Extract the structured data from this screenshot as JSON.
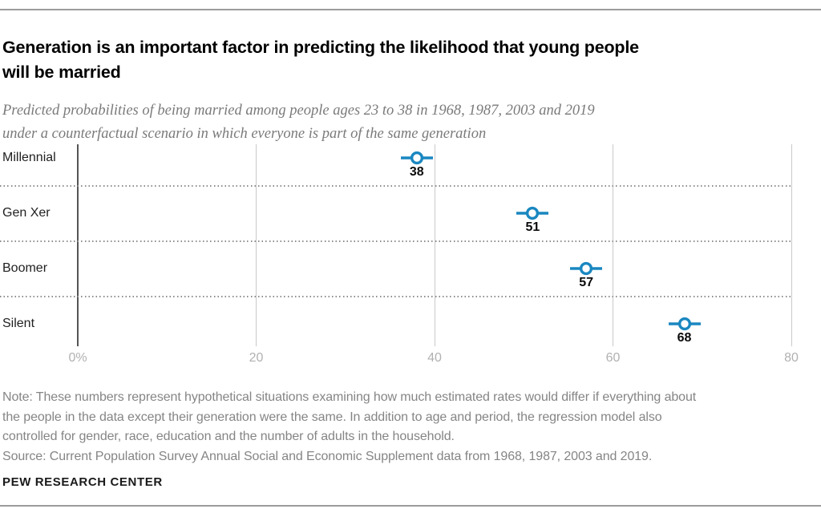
{
  "header": {
    "title_lines": [
      "Generation is an important factor in predicting the likelihood that young people",
      "will be married"
    ],
    "subtitle_lines": [
      "Predicted probabilities of being married among people ages 23 to 38 in 1968, 1987, 2003 and 2019",
      "under a counterfactual scenario in which everyone is part of the same generation"
    ]
  },
  "chart_data": {
    "type": "scatter",
    "title": "Generation is an important factor in predicting the likelihood that young people will be married",
    "subtitle": "Predicted probabilities of being married among people ages 23 to 38 in 1968, 1987, 2003 and 2019 under a counterfactual scenario in which everyone is part of the same generation",
    "categories": [
      "Millennial",
      "Gen Xer",
      "Boomer",
      "Silent"
    ],
    "values": [
      38,
      51,
      57,
      68
    ],
    "value_unit": "percent",
    "xlim": [
      0,
      80
    ],
    "x_ticks": [
      {
        "value": 0,
        "label": "0%"
      },
      {
        "value": 20,
        "label": "20"
      },
      {
        "value": 40,
        "label": "40"
      },
      {
        "value": 60,
        "label": "60"
      },
      {
        "value": 80,
        "label": "80"
      }
    ],
    "marker_style": "open-circle-with-horizontal-line",
    "marker_color": "#1a87c0",
    "grid": {
      "vertical_lines": true,
      "dotted_row_separators": true
    },
    "legend": "none"
  },
  "footer": {
    "note_lines": [
      "Note: These numbers represent hypothetical situations examining how much estimated rates would differ if everything about",
      "the people in the data except their generation were the same. In addition to age and period, the regression model also",
      "controlled for gender, race, education and the number of adults in the household."
    ],
    "source": "Source: Current Population Survey Annual Social and Economic Supplement data from 1968, 1987, 2003 and 2019.",
    "brand": "PEW RESEARCH CENTER"
  }
}
